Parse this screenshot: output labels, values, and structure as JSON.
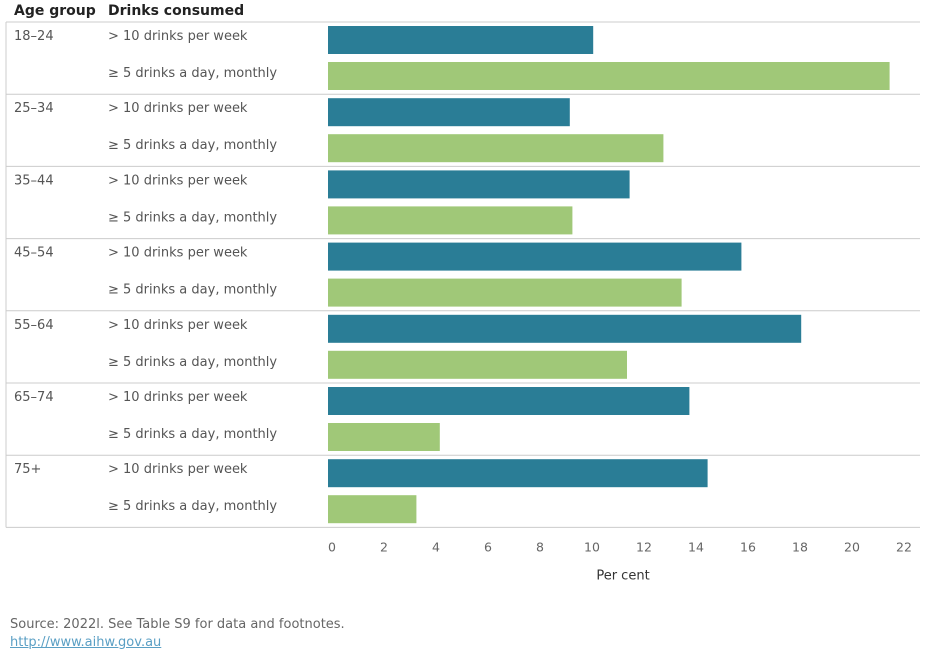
{
  "headers": {
    "age_group": "Age group",
    "drinks_consumed": "Drinks consumed"
  },
  "colors": {
    "series1": "#2a7d96",
    "series2": "#a0c878"
  },
  "chart_data": {
    "type": "bar",
    "orientation": "horizontal",
    "xlabel": "Per cent",
    "xlim": [
      0,
      22
    ],
    "xticks": [
      0,
      2,
      4,
      6,
      8,
      10,
      12,
      14,
      16,
      18,
      20,
      22
    ],
    "groups": [
      "18–24",
      "25–34",
      "35–44",
      "45–54",
      "55–64",
      "65–74",
      "75+"
    ],
    "series": [
      {
        "name": "> 10 drinks per week",
        "values": [
          10.2,
          9.3,
          11.6,
          15.9,
          18.2,
          13.9,
          14.6
        ]
      },
      {
        "name": "≥ 5 drinks a day, monthly",
        "values": [
          21.6,
          12.9,
          9.4,
          13.6,
          11.5,
          4.3,
          3.4
        ]
      }
    ],
    "grid": false,
    "legend": "none"
  },
  "footer": {
    "source": "Source: 2022l. See Table S9 for data and footnotes.",
    "link": "http://www.aihw.gov.au"
  }
}
